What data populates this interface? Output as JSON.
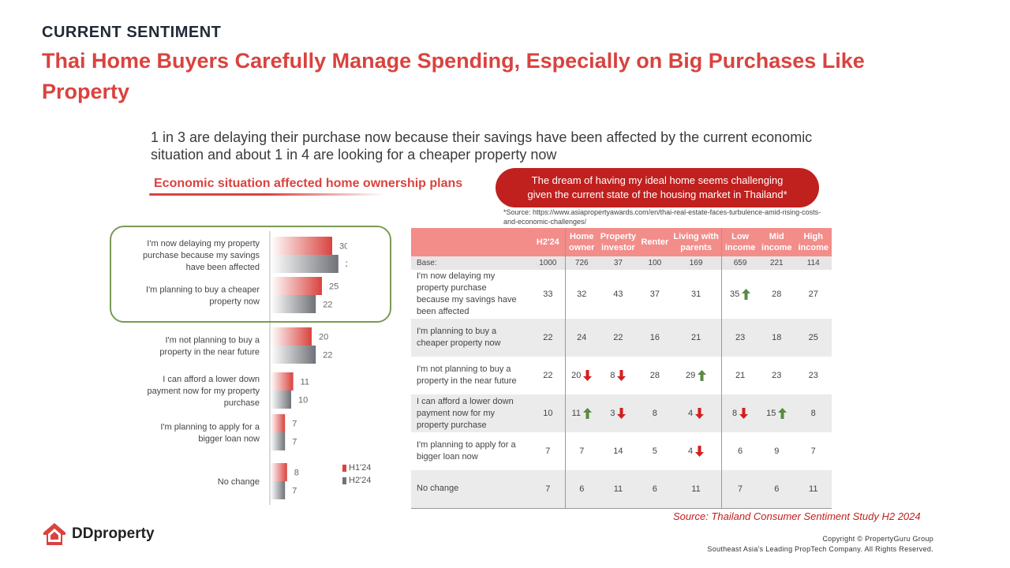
{
  "eyebrow": "CURRENT SENTIMENT",
  "title": "Thai Home Buyers Carefully Manage Spending, Especially on Big Purchases Like Property",
  "subtitle": "1 in 3 are delaying their purchase now because their savings have been affected by the current economic situation and about 1 in 4 are looking for a cheaper property now",
  "section_label": "Economic situation affected home ownership plans",
  "pill": {
    "line1": "The dream of having my ideal home seems challenging",
    "line2": "given the current state of the housing market in Thailand*"
  },
  "source_note": "*Source: https://www.asiapropertyawards.com/en/thai-real-estate-faces-turbulence-amid-rising-costs-and-economic-challenges/",
  "chart_data": {
    "type": "bar",
    "orientation": "horizontal",
    "categories": [
      [
        "I'm now delaying my property",
        "purchase because my savings",
        "have been affected"
      ],
      [
        "I'm planning to buy a cheaper",
        "property now"
      ],
      [
        "I'm not planning to buy a",
        "property in the near future"
      ],
      [
        "I can afford a lower down",
        "payment now for my property",
        "purchase"
      ],
      [
        "I'm planning to apply for a",
        "bigger loan now"
      ],
      [
        "No change"
      ]
    ],
    "series": [
      {
        "name": "H1'24",
        "values": [
          30,
          25,
          20,
          11,
          7,
          8
        ],
        "color": "#d9433f"
      },
      {
        "name": "H2'24",
        "values": [
          33,
          22,
          22,
          10,
          7,
          7
        ],
        "color": "#6f7278"
      }
    ],
    "xlim": [
      0,
      40
    ],
    "legend_position": "bottom-right",
    "highlighted_categories": [
      0,
      1
    ]
  },
  "table": {
    "headers": [
      {
        "l1": "H2'24",
        "l2": ""
      },
      {
        "l1": "Home",
        "l2": "owner"
      },
      {
        "l1": "Property",
        "l2": "investor"
      },
      {
        "l1": "Renter",
        "l2": ""
      },
      {
        "l1": "Living with",
        "l2": "parents"
      },
      {
        "l1": "Low",
        "l2": "income"
      },
      {
        "l1": "Mid",
        "l2": "income"
      },
      {
        "l1": "High",
        "l2": "income"
      }
    ],
    "base_label": "Base:",
    "base": [
      "1000",
      "726",
      "37",
      "100",
      "169",
      "659",
      "221",
      "114"
    ],
    "rows": [
      {
        "label": [
          "I'm now delaying my",
          "property purchase",
          "because my savings have",
          "been affected"
        ],
        "values": [
          "33",
          "32",
          "43",
          "37",
          "31",
          "35",
          "28",
          "27"
        ],
        "arrows": [
          "",
          "",
          "",
          "",
          "",
          "up",
          "",
          ""
        ]
      },
      {
        "label": [
          "I'm planning to buy a",
          "cheaper property now"
        ],
        "values": [
          "22",
          "24",
          "22",
          "16",
          "21",
          "23",
          "18",
          "25"
        ],
        "arrows": [
          "",
          "",
          "",
          "",
          "",
          "",
          "",
          ""
        ]
      },
      {
        "label": [
          "I'm not planning to buy a",
          "property in the near future"
        ],
        "values": [
          "22",
          "20",
          "8",
          "28",
          "29",
          "21",
          "23",
          "23"
        ],
        "arrows": [
          "",
          "down",
          "down",
          "",
          "up",
          "",
          "",
          ""
        ]
      },
      {
        "label": [
          "I can afford a lower down",
          "payment now for my",
          "property purchase"
        ],
        "values": [
          "10",
          "11",
          "3",
          "8",
          "4",
          "8",
          "15",
          "8"
        ],
        "arrows": [
          "",
          "up",
          "down",
          "",
          "down",
          "down",
          "up",
          ""
        ]
      },
      {
        "label": [
          "I'm planning to apply for a",
          "bigger loan now"
        ],
        "values": [
          "7",
          "7",
          "14",
          "5",
          "4",
          "6",
          "9",
          "7"
        ],
        "arrows": [
          "",
          "",
          "",
          "",
          "down",
          "",
          "",
          ""
        ]
      },
      {
        "label": [
          "No change"
        ],
        "values": [
          "7",
          "6",
          "11",
          "6",
          "11",
          "7",
          "6",
          "11"
        ],
        "arrows": [
          "",
          "",
          "",
          "",
          "",
          "",
          "",
          ""
        ]
      }
    ]
  },
  "source_bottom": "Source: Thailand Consumer Sentiment Study H2 2024",
  "logo_text": "DDproperty",
  "copyright": {
    "line1": "Copyright © PropertyGuru Group",
    "line2": "Southeast Asia's Leading PropTech Company. All Rights Reserved."
  },
  "colors": {
    "accent": "#d9433f",
    "dark_red": "#c0201e",
    "table_header": "#f28d8a",
    "up_arrow": "#5a8a44",
    "down_arrow": "#d41e1e"
  }
}
